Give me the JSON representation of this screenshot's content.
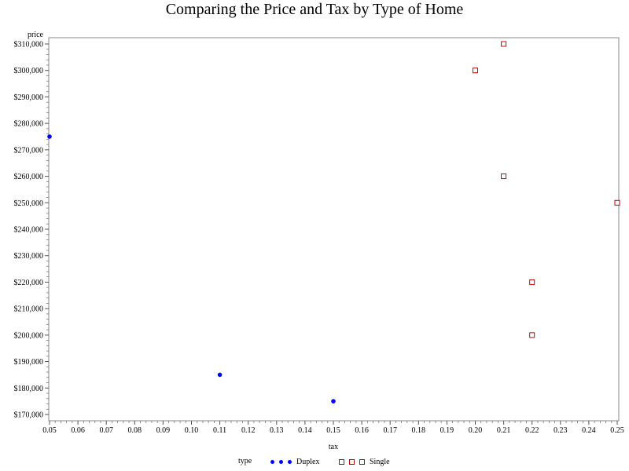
{
  "chart_data": {
    "type": "scatter",
    "title": "Comparing the Price and Tax by Type of Home",
    "xlabel": "tax",
    "ylabel": "price",
    "xlim": [
      0.05,
      0.25
    ],
    "ylim": [
      170000,
      310000
    ],
    "xticks": [
      0.05,
      0.06,
      0.07,
      0.08,
      0.09,
      0.1,
      0.11,
      0.12,
      0.13,
      0.14,
      0.15,
      0.16,
      0.17,
      0.18,
      0.19,
      0.2,
      0.21,
      0.22,
      0.23,
      0.24,
      0.25
    ],
    "xtick_labels": [
      "0.05",
      "0.06",
      "0.07",
      "0.08",
      "0.09",
      "0.10",
      "0.11",
      "0.12",
      "0.13",
      "0.14",
      "0.15",
      "0.16",
      "0.17",
      "0.18",
      "0.19",
      "0.20",
      "0.21",
      "0.22",
      "0.23",
      "0.24",
      "0.25"
    ],
    "yticks": [
      170000,
      180000,
      190000,
      200000,
      210000,
      220000,
      230000,
      240000,
      250000,
      260000,
      270000,
      280000,
      290000,
      300000,
      310000
    ],
    "ytick_labels": [
      "$170,000",
      "$180,000",
      "$190,000",
      "$200,000",
      "$210,000",
      "$220,000",
      "$230,000",
      "$240,000",
      "$250,000",
      "$260,000",
      "$270,000",
      "$280,000",
      "$290,000",
      "$300,000",
      "$310,000"
    ],
    "grid": false,
    "legend": {
      "position": "bottom",
      "title": "type"
    },
    "series": [
      {
        "name": "Duplex",
        "marker": "dot",
        "color": "#0000ff",
        "points": [
          {
            "x": 0.05,
            "y": 275000
          },
          {
            "x": 0.11,
            "y": 185000
          },
          {
            "x": 0.15,
            "y": 175000
          }
        ]
      },
      {
        "name": "Single",
        "marker": "square",
        "color": "#cc0000",
        "points": [
          {
            "x": 0.2,
            "y": 300000
          },
          {
            "x": 0.21,
            "y": 310000
          },
          {
            "x": 0.21,
            "y": 260000
          },
          {
            "x": 0.25,
            "y": 250000
          },
          {
            "x": 0.22,
            "y": 220000
          },
          {
            "x": 0.22,
            "y": 200000
          }
        ]
      }
    ]
  }
}
